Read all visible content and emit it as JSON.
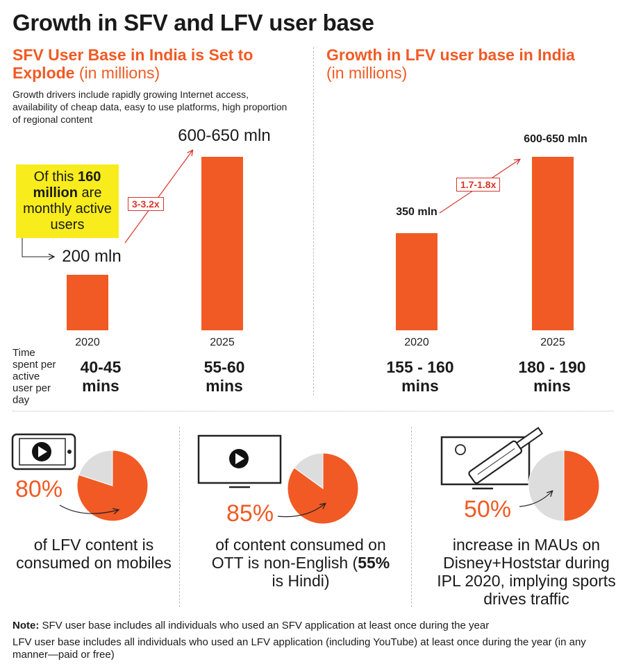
{
  "title": "Growth in SFV and LFV user base",
  "colors": {
    "accent": "#f15a24",
    "callout_bg": "#f8ec1c",
    "multiplier": "#d9342b",
    "pie_rest": "#dddddd"
  },
  "sfv": {
    "title_bold": "SFV User Base in India is Set to Explode",
    "title_unit": "(in millions)",
    "drivers": "Growth drivers include rapidly growing Internet access, availability of cheap data, easy to use platforms, high proportion of regional content",
    "callout": {
      "pre": "Of this ",
      "strong": "160 million",
      "post": " are monthly active users"
    },
    "multiplier": "3-3.2x",
    "time_label": "Time spent per active user per day"
  },
  "lfv": {
    "title_bold": "Growth in LFV user base in India",
    "title_unit": "(in millions)",
    "multiplier": "1.7-1.8x"
  },
  "chart_data": [
    {
      "type": "bar",
      "title": "SFV User Base in India is Set to Explode (in millions)",
      "categories": [
        "2020",
        "2025"
      ],
      "values": [
        200,
        625
      ],
      "value_labels": [
        "200 mln",
        "600-650 mln"
      ],
      "time_spent": [
        "40-45 mins",
        "55-60 mins"
      ],
      "ylim": [
        0,
        650
      ]
    },
    {
      "type": "bar",
      "title": "Growth in LFV user base in India (in millions)",
      "categories": [
        "2020",
        "2025"
      ],
      "values": [
        350,
        625
      ],
      "value_labels": [
        "350 mln",
        "600-650 mln"
      ],
      "time_spent": [
        "155 - 160 mins",
        "180 - 190 mins"
      ],
      "ylim": [
        0,
        650
      ]
    },
    {
      "type": "pie",
      "labels": [
        "",
        ""
      ],
      "values": [
        80,
        20
      ],
      "label": "80%",
      "caption": "of LFV content is consumed on mobiles"
    },
    {
      "type": "pie",
      "labels": [
        "",
        ""
      ],
      "values": [
        85,
        15
      ],
      "label": "85%",
      "caption_pre": "of content consumed on OTT is non-English (",
      "caption_bold": "55%",
      "caption_post": " is Hindi)"
    },
    {
      "type": "pie",
      "labels": [
        "",
        ""
      ],
      "values": [
        50,
        50
      ],
      "label": "50%",
      "caption": "increase in MAUs on Disney+Hoststar during IPL 2020, implying sports drives traffic"
    }
  ],
  "note": {
    "label": "Note:",
    "line1": " SFV user base includes all individuals who used an SFV application at least once during the year",
    "line2": "LFV user base includes all individuals who used an LFV application (including YouTube) at least once during the year (in any manner—paid or free)"
  }
}
